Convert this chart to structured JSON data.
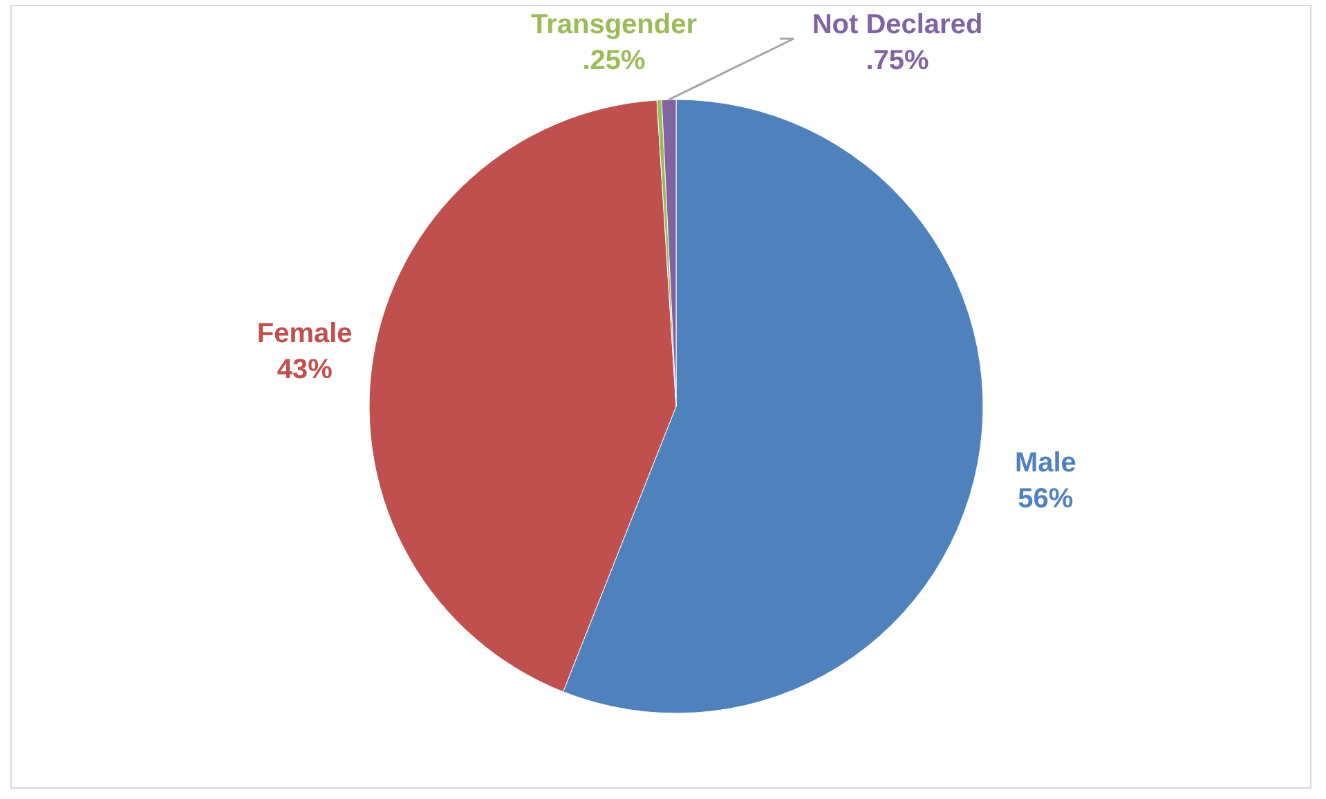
{
  "chart_data": {
    "type": "pie",
    "categories": [
      "Male",
      "Female",
      "Transgender",
      "Not Declared"
    ],
    "values": [
      56,
      43,
      0.25,
      0.75
    ],
    "colors": [
      "#4f81bd",
      "#c0504d",
      "#9bbb59",
      "#8064a2"
    ],
    "value_labels": [
      "56%",
      "43%",
      ".25%",
      ".75%"
    ]
  }
}
